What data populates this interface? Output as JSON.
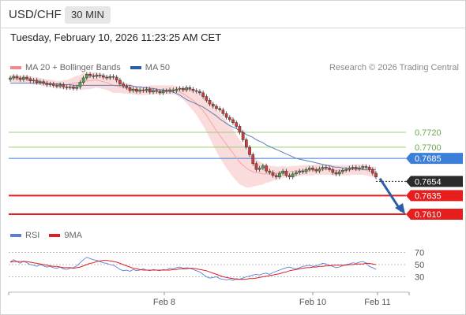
{
  "header": {
    "symbol": "USD/CHF",
    "timeframe": "30 MIN"
  },
  "timestamp": "Tuesday, February 10, 2026 11:23:25 AM CET",
  "copyright": "Research © 2026 Trading Central",
  "legend": [
    {
      "label": "MA 20 + Bollinger Bands",
      "color": "#f08a8a"
    },
    {
      "label": "MA 50",
      "color": "#2a5ea8"
    }
  ],
  "rsi_legend": [
    {
      "label": "RSI",
      "color": "#5b7fd6"
    },
    {
      "label": "9MA",
      "color": "#e02020"
    }
  ],
  "colors": {
    "resistance": "#9fcc7a",
    "pivot": "#3b7fd9",
    "support": "#e61e1e",
    "price": "#2b2b2b",
    "bb_fill": "#fbdcdc",
    "arrow": "#2a5ea8"
  },
  "chart_data": [
    {
      "type": "candlestick",
      "x_tick_labels": [
        "Feb 8",
        "Feb 10",
        "Feb 11"
      ],
      "ylim": [
        0.7592,
        0.7795
      ],
      "levels": [
        {
          "value": 0.772,
          "label": "0.7720",
          "kind": "resistance"
        },
        {
          "value": 0.77,
          "label": "0.7700",
          "kind": "resistance"
        },
        {
          "value": 0.7685,
          "label": "0.7685",
          "kind": "pivot"
        },
        {
          "value": 0.7654,
          "label": "0.7654",
          "kind": "price"
        },
        {
          "value": 0.7635,
          "label": "0.7635",
          "kind": "support"
        },
        {
          "value": 0.761,
          "label": "0.7610",
          "kind": "support"
        }
      ],
      "close": [
        0.7793,
        0.7795,
        0.7793,
        0.7791,
        0.7794,
        0.7792,
        0.7789,
        0.779,
        0.7787,
        0.7788,
        0.7786,
        0.7784,
        0.7785,
        0.7783,
        0.7782,
        0.7784,
        0.7781,
        0.778,
        0.7781,
        0.7779,
        0.7781,
        0.7787,
        0.7793,
        0.7798,
        0.7796,
        0.7795,
        0.7797,
        0.7796,
        0.7794,
        0.7793,
        0.7795,
        0.7794,
        0.779,
        0.7785,
        0.7782,
        0.778,
        0.7776,
        0.7778,
        0.7775,
        0.7777,
        0.7776,
        0.7778,
        0.7774,
        0.7776,
        0.7775,
        0.7773,
        0.7776,
        0.7775,
        0.7777,
        0.7776,
        0.7778,
        0.7779,
        0.7777,
        0.778,
        0.7778,
        0.7776,
        0.7775,
        0.7773,
        0.7768,
        0.7763,
        0.7758,
        0.7755,
        0.7752,
        0.775,
        0.7745,
        0.774,
        0.7737,
        0.7733,
        0.7728,
        0.772,
        0.771,
        0.77,
        0.769,
        0.7678,
        0.767,
        0.7672,
        0.7675,
        0.7668,
        0.7666,
        0.7662,
        0.766,
        0.7665,
        0.7668,
        0.7662,
        0.766,
        0.7664,
        0.7666,
        0.7668,
        0.7667,
        0.767,
        0.7672,
        0.767,
        0.7668,
        0.7671,
        0.7673,
        0.7672,
        0.767,
        0.7666,
        0.7664,
        0.7667,
        0.7669,
        0.767,
        0.7672,
        0.7673,
        0.7671,
        0.7672,
        0.7674,
        0.7673,
        0.767,
        0.7665,
        0.766
      ],
      "ma20": [
        0.7792,
        0.7792,
        0.7792,
        0.7791,
        0.7791,
        0.7791,
        0.779,
        0.7789,
        0.7789,
        0.7788,
        0.7787,
        0.7786,
        0.7786,
        0.7785,
        0.7784,
        0.7784,
        0.7784,
        0.7784,
        0.7785,
        0.7786,
        0.7787,
        0.7787,
        0.7788,
        0.7789,
        0.7789,
        0.779,
        0.779,
        0.7789,
        0.7788,
        0.7787,
        0.7785,
        0.7783,
        0.7782,
        0.7781,
        0.778,
        0.7779,
        0.7778,
        0.7777,
        0.7776,
        0.7776,
        0.7776,
        0.7776,
        0.7777,
        0.7777,
        0.7777,
        0.7777,
        0.7777,
        0.7777,
        0.7777,
        0.7777,
        0.7776,
        0.7774,
        0.7772,
        0.7769,
        0.7766,
        0.7763,
        0.7759,
        0.7754,
        0.7749,
        0.7743,
        0.7736,
        0.7729,
        0.7722,
        0.7716,
        0.771,
        0.7704,
        0.7698,
        0.7692,
        0.7686,
        0.768,
        0.7676,
        0.7672,
        0.7669,
        0.7667,
        0.7666,
        0.7665,
        0.7664,
        0.7664,
        0.7664,
        0.7665,
        0.7665,
        0.7666,
        0.7667,
        0.7667,
        0.7667,
        0.7668,
        0.7668,
        0.7668,
        0.7669,
        0.7669,
        0.7669,
        0.7669,
        0.767,
        0.767,
        0.767,
        0.767,
        0.767,
        0.7669,
        0.7669,
        0.7669,
        0.7669,
        0.7669,
        0.7669,
        0.767,
        0.767,
        0.767,
        0.767,
        0.7669,
        0.7668,
        0.7667,
        0.7666
      ],
      "ma50": [
        0.7786,
        0.7786,
        0.7786,
        0.7786,
        0.7786,
        0.7786,
        0.7786,
        0.7786,
        0.7786,
        0.7786,
        0.7786,
        0.7785,
        0.7785,
        0.7785,
        0.7785,
        0.7785,
        0.7784,
        0.7784,
        0.7784,
        0.7783,
        0.7783,
        0.7783,
        0.7783,
        0.7783,
        0.7783,
        0.7783,
        0.7783,
        0.7783,
        0.7783,
        0.7783,
        0.7783,
        0.7783,
        0.7783,
        0.7783,
        0.7783,
        0.7783,
        0.7783,
        0.7782,
        0.7781,
        0.7781,
        0.778,
        0.778,
        0.7779,
        0.7779,
        0.7778,
        0.7777,
        0.7777,
        0.7776,
        0.7775,
        0.7774,
        0.7772,
        0.777,
        0.7767,
        0.7764,
        0.7762,
        0.776,
        0.7758,
        0.7756,
        0.7754,
        0.7751,
        0.7748,
        0.7745,
        0.7742,
        0.7738,
        0.7735,
        0.7732,
        0.7729,
        0.7727,
        0.7725,
        0.7722,
        0.772,
        0.7717,
        0.7715,
        0.7713,
        0.771,
        0.7708,
        0.7706,
        0.7703,
        0.7701,
        0.7699,
        0.7697,
        0.7695,
        0.7693,
        0.7691,
        0.7689,
        0.7687,
        0.7685,
        0.7684,
        0.7683,
        0.7682,
        0.7681,
        0.768,
        0.7679,
        0.7678,
        0.7677,
        0.7676,
        0.7675,
        0.7674,
        0.7673,
        0.7673,
        0.7672,
        0.7672,
        0.7671,
        0.7671,
        0.7671,
        0.7671,
        0.767,
        0.767,
        0.767,
        0.767,
        0.767
      ],
      "bb_width": [
        0.0005,
        0.0005,
        0.0005,
        0.0005,
        0.0005,
        0.0005,
        0.0005,
        0.0005,
        0.0005,
        0.0005,
        0.0005,
        0.0005,
        0.0005,
        0.0005,
        0.0005,
        0.0005,
        0.0006,
        0.0006,
        0.0007,
        0.0008,
        0.0009,
        0.001,
        0.0011,
        0.0011,
        0.0011,
        0.0011,
        0.001,
        0.001,
        0.001,
        0.001,
        0.001,
        0.001,
        0.0009,
        0.0008,
        0.0008,
        0.0007,
        0.0007,
        0.0006,
        0.0006,
        0.0006,
        0.0006,
        0.0006,
        0.0006,
        0.0006,
        0.0006,
        0.0006,
        0.0006,
        0.0006,
        0.0006,
        0.0006,
        0.0006,
        0.0007,
        0.0008,
        0.001,
        0.0012,
        0.0014,
        0.0016,
        0.0018,
        0.002,
        0.0022,
        0.0024,
        0.0026,
        0.0028,
        0.003,
        0.0031,
        0.0032,
        0.0032,
        0.0032,
        0.0031,
        0.003,
        0.0028,
        0.0026,
        0.0023,
        0.002,
        0.0018,
        0.0016,
        0.0014,
        0.0012,
        0.0011,
        0.001,
        0.0009,
        0.0008,
        0.0008,
        0.0007,
        0.0007,
        0.0007,
        0.0007,
        0.0007,
        0.0007,
        0.0007,
        0.0007,
        0.0007,
        0.0007,
        0.0007,
        0.0007,
        0.0007,
        0.0007,
        0.0007,
        0.0007,
        0.0007,
        0.0007,
        0.0007,
        0.0007,
        0.0007,
        0.0007,
        0.0007,
        0.0007,
        0.0007,
        0.0007,
        0.0007,
        0.0008
      ]
    },
    {
      "type": "line",
      "title": "RSI",
      "ylim": [
        20,
        75
      ],
      "yticks": [
        70,
        50,
        30
      ],
      "rsi": [
        54,
        58,
        55,
        52,
        56,
        53,
        50,
        49,
        47,
        50,
        48,
        46,
        47,
        45,
        44,
        46,
        43,
        42,
        44,
        45,
        48,
        53,
        58,
        62,
        60,
        58,
        57,
        55,
        53,
        52,
        50,
        49,
        46,
        42,
        40,
        41,
        39,
        42,
        40,
        41,
        43,
        41,
        40,
        42,
        41,
        40,
        42,
        41,
        44,
        43,
        45,
        46,
        44,
        45,
        44,
        42,
        40,
        38,
        34,
        30,
        28,
        29,
        30,
        27,
        26,
        25,
        26,
        24,
        27,
        26,
        28,
        30,
        31,
        33,
        34,
        33,
        35,
        36,
        34,
        37,
        39,
        41,
        43,
        45,
        46,
        44,
        43,
        45,
        47,
        48,
        49,
        47,
        48,
        50,
        52,
        51,
        49,
        47,
        45,
        46,
        48,
        50,
        51,
        53,
        52,
        54,
        55,
        53,
        47,
        45,
        42
      ],
      "ma9": [
        54,
        55,
        55,
        55,
        55,
        55,
        54,
        53,
        52,
        51,
        50,
        49,
        48,
        47,
        47,
        46,
        45,
        45,
        45,
        44,
        45,
        46,
        48,
        50,
        52,
        53,
        55,
        56,
        57,
        57,
        56,
        55,
        54,
        52,
        50,
        48,
        46,
        44,
        43,
        42,
        41,
        41,
        41,
        41,
        41,
        41,
        41,
        41,
        41,
        42,
        42,
        43,
        43,
        43,
        44,
        44,
        43,
        42,
        41,
        40,
        38,
        36,
        34,
        32,
        30,
        29,
        28,
        27,
        26,
        26,
        26,
        26,
        27,
        27,
        28,
        29,
        30,
        31,
        32,
        33,
        34,
        35,
        37,
        38,
        40,
        41,
        42,
        43,
        44,
        45,
        45,
        46,
        46,
        47,
        47,
        48,
        48,
        49,
        49,
        49,
        49,
        49,
        50,
        50,
        51,
        51,
        51,
        52,
        52,
        51,
        50
      ]
    }
  ]
}
